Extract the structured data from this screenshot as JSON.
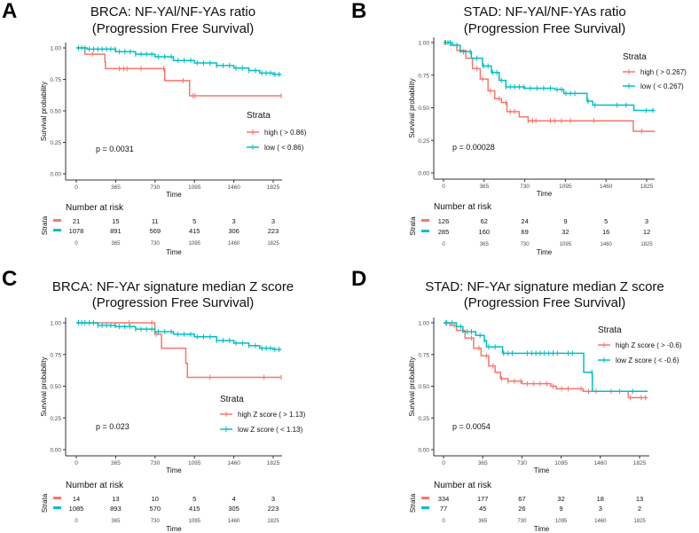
{
  "colors": {
    "high": "#F8766D",
    "low": "#00BFC4",
    "axis": "#333333",
    "tick": "#4D4D4D"
  },
  "chart_data": [
    {
      "type": "line",
      "subtype": "kaplan-meier",
      "panel_letter": "A",
      "title": [
        "BRCA: NF-YAl/NF-YAs ratio",
        "(Progression Free Survival)"
      ],
      "xlabel": "Time",
      "ylabel": "Survival probability",
      "xticks": [
        0,
        365,
        730,
        1095,
        1460,
        1825
      ],
      "xlim": [
        -100,
        1910
      ],
      "yticks": [
        "0.00",
        "0.25",
        "0.50",
        "0.75",
        "1.00"
      ],
      "ylim": [
        -0.05,
        1.04
      ],
      "pvalue": "p = 0.0031",
      "legend": {
        "title": "Strata",
        "placement": "right-middle"
      },
      "series": [
        {
          "name": "high ( > 0.86)",
          "key": "high",
          "points": [
            [
              0,
              1
            ],
            [
              80,
              0.95
            ],
            [
              265,
              0.89
            ],
            [
              270,
              0.835
            ],
            [
              820,
              0.74
            ],
            [
              1050,
              0.62
            ],
            [
              1900,
              0.62
            ]
          ],
          "censor": [
            150,
            400,
            440,
            470,
            600,
            810,
            990,
            1080,
            1100,
            1900
          ]
        },
        {
          "name": "low ( < 0.86)",
          "key": "low",
          "points": [
            [
              0,
              1
            ],
            [
              100,
              0.99
            ],
            [
              365,
              0.97
            ],
            [
              550,
              0.95
            ],
            [
              730,
              0.93
            ],
            [
              900,
              0.9
            ],
            [
              1095,
              0.88
            ],
            [
              1300,
              0.86
            ],
            [
              1460,
              0.84
            ],
            [
              1600,
              0.82
            ],
            [
              1700,
              0.8
            ],
            [
              1825,
              0.79
            ],
            [
              1900,
              0.79
            ]
          ],
          "censor": [
            20,
            50,
            80,
            120,
            160,
            200,
            240,
            280,
            320,
            360,
            400,
            450,
            500,
            550,
            600,
            650,
            700,
            760,
            820,
            880,
            940,
            1000,
            1060,
            1120,
            1180,
            1240,
            1300,
            1360,
            1420,
            1480,
            1540,
            1600,
            1660,
            1720,
            1760,
            1800,
            1840,
            1880
          ]
        }
      ],
      "risk_table": {
        "title": "Number at risk",
        "strata_label": "Strata",
        "time_label": "Time",
        "rows": [
          [
            "21",
            "15",
            "11",
            "5",
            "3",
            "3"
          ],
          [
            "1078",
            "891",
            "569",
            "415",
            "306",
            "223"
          ]
        ]
      }
    },
    {
      "type": "line",
      "subtype": "kaplan-meier",
      "panel_letter": "B",
      "title": [
        "STAD: NF-YAl/NF-YAs ratio",
        "(Progression Free Survival)"
      ],
      "xlabel": "Time",
      "ylabel": "Survival probability",
      "xticks": [
        0,
        365,
        730,
        1095,
        1460,
        1825
      ],
      "xlim": [
        -100,
        1910
      ],
      "yticks": [
        "0.00",
        "0.25",
        "0.50",
        "0.75",
        "1.00"
      ],
      "ylim": [
        -0.05,
        1.04
      ],
      "pvalue": "p = 0.00028",
      "legend": {
        "title": "Strata",
        "placement": "top-right"
      },
      "series": [
        {
          "name": "high ( > 0.267)",
          "key": "high",
          "points": [
            [
              0,
              1
            ],
            [
              60,
              0.98
            ],
            [
              120,
              0.94
            ],
            [
              200,
              0.88
            ],
            [
              260,
              0.8
            ],
            [
              330,
              0.72
            ],
            [
              400,
              0.63
            ],
            [
              460,
              0.57
            ],
            [
              520,
              0.54
            ],
            [
              570,
              0.47
            ],
            [
              680,
              0.43
            ],
            [
              760,
              0.4
            ],
            [
              1700,
              0.4
            ],
            [
              1705,
              0.32
            ],
            [
              1900,
              0.32
            ]
          ],
          "censor": [
            10,
            150,
            300,
            350,
            420,
            500,
            560,
            600,
            640,
            760,
            800,
            830,
            960,
            1000,
            1060,
            1140,
            1350,
            1780
          ]
        },
        {
          "name": "low ( < 0.267)",
          "key": "low",
          "points": [
            [
              0,
              1
            ],
            [
              80,
              0.98
            ],
            [
              150,
              0.93
            ],
            [
              250,
              0.88
            ],
            [
              350,
              0.82
            ],
            [
              430,
              0.77
            ],
            [
              500,
              0.71
            ],
            [
              560,
              0.66
            ],
            [
              730,
              0.65
            ],
            [
              1000,
              0.64
            ],
            [
              1080,
              0.61
            ],
            [
              1250,
              0.61
            ],
            [
              1290,
              0.55
            ],
            [
              1340,
              0.52
            ],
            [
              1700,
              0.52
            ],
            [
              1710,
              0.48
            ],
            [
              1900,
              0.48
            ]
          ],
          "censor": [
            20,
            40,
            60,
            120,
            180,
            240,
            300,
            360,
            400,
            440,
            480,
            520,
            560,
            600,
            640,
            680,
            720,
            780,
            840,
            900,
            960,
            1020,
            1060,
            1100,
            1140,
            1180,
            1300,
            1360,
            1560,
            1640,
            1820,
            1880
          ]
        }
      ],
      "risk_table": {
        "title": "Number at risk",
        "strata_label": "Strata",
        "time_label": "Time",
        "rows": [
          [
            "126",
            "62",
            "24",
            "9",
            "5",
            "3"
          ],
          [
            "285",
            "160",
            "69",
            "32",
            "16",
            "12"
          ]
        ]
      }
    },
    {
      "type": "line",
      "subtype": "kaplan-meier",
      "panel_letter": "C",
      "title": [
        "BRCA: NF-YAr signature median Z score",
        "(Progression Free Survival)"
      ],
      "xlabel": "Time",
      "ylabel": "Survival probability",
      "xticks": [
        0,
        365,
        730,
        1095,
        1460,
        1825
      ],
      "xlim": [
        -100,
        1910
      ],
      "yticks": [
        "0.00",
        "0.25",
        "0.50",
        "0.75",
        "1.00"
      ],
      "ylim": [
        -0.05,
        1.04
      ],
      "pvalue": "p = 0.023",
      "legend": {
        "title": "Strata",
        "placement": "right-middle"
      },
      "series": [
        {
          "name": "high Z score ( > 1.13)",
          "key": "high",
          "points": [
            [
              0,
              1
            ],
            [
              725,
              1
            ],
            [
              728,
              0.91
            ],
            [
              790,
              0.8
            ],
            [
              1010,
              0.8
            ],
            [
              1015,
              0.68
            ],
            [
              1030,
              0.57
            ],
            [
              1900,
              0.57
            ]
          ],
          "censor": [
            490,
            700,
            740,
            1240,
            1740,
            1900
          ]
        },
        {
          "name": "low Z score ( < 1.13)",
          "key": "low",
          "points": [
            [
              0,
              1
            ],
            [
              200,
              0.98
            ],
            [
              365,
              0.97
            ],
            [
              550,
              0.95
            ],
            [
              730,
              0.93
            ],
            [
              900,
              0.91
            ],
            [
              1095,
              0.89
            ],
            [
              1300,
              0.86
            ],
            [
              1460,
              0.84
            ],
            [
              1600,
              0.82
            ],
            [
              1700,
              0.8
            ],
            [
              1825,
              0.79
            ],
            [
              1900,
              0.79
            ]
          ],
          "censor": [
            20,
            50,
            80,
            120,
            160,
            200,
            240,
            280,
            320,
            360,
            400,
            450,
            500,
            550,
            600,
            650,
            700,
            760,
            820,
            880,
            940,
            1000,
            1060,
            1120,
            1180,
            1240,
            1300,
            1360,
            1420,
            1480,
            1540,
            1600,
            1660,
            1720,
            1760,
            1800,
            1840,
            1880
          ]
        }
      ],
      "risk_table": {
        "title": "Number at risk",
        "strata_label": "Strata",
        "time_label": "Time",
        "rows": [
          [
            "14",
            "13",
            "10",
            "5",
            "4",
            "3"
          ],
          [
            "1085",
            "893",
            "570",
            "415",
            "305",
            "223"
          ]
        ]
      }
    },
    {
      "type": "line",
      "subtype": "kaplan-meier",
      "panel_letter": "D",
      "title": [
        "STAD: NF-YAr signature median Z score",
        "(Progression Free Survival)"
      ],
      "xlabel": "Time",
      "ylabel": "Survival probability",
      "xticks": [
        0,
        365,
        730,
        1095,
        1460,
        1825
      ],
      "xlim": [
        -100,
        1910
      ],
      "yticks": [
        "0.00",
        "0.25",
        "0.50",
        "0.75",
        "1.00"
      ],
      "ylim": [
        -0.05,
        1.04
      ],
      "pvalue": "p = 0.0054",
      "legend": {
        "title": "Strata",
        "placement": "top-right"
      },
      "series": [
        {
          "name": "high Z score ( > -0.6)",
          "key": "high",
          "points": [
            [
              0,
              1
            ],
            [
              60,
              0.98
            ],
            [
              120,
              0.94
            ],
            [
              200,
              0.88
            ],
            [
              280,
              0.8
            ],
            [
              350,
              0.74
            ],
            [
              420,
              0.66
            ],
            [
              480,
              0.61
            ],
            [
              530,
              0.56
            ],
            [
              600,
              0.54
            ],
            [
              730,
              0.52
            ],
            [
              1000,
              0.5
            ],
            [
              1050,
              0.48
            ],
            [
              1300,
              0.46
            ],
            [
              1700,
              0.46
            ],
            [
              1720,
              0.41
            ],
            [
              1900,
              0.41
            ]
          ],
          "censor": [
            20,
            100,
            180,
            260,
            330,
            400,
            460,
            540,
            600,
            660,
            720,
            780,
            840,
            900,
            960,
            1020,
            1100,
            1160,
            1280,
            1350,
            1420,
            1560,
            1640,
            1740,
            1840,
            1880
          ]
        },
        {
          "name": "low Z score ( < -0.6)",
          "key": "low",
          "points": [
            [
              0,
              1
            ],
            [
              120,
              0.97
            ],
            [
              180,
              0.93
            ],
            [
              300,
              0.9
            ],
            [
              380,
              0.86
            ],
            [
              400,
              0.81
            ],
            [
              550,
              0.76
            ],
            [
              1300,
              0.76
            ],
            [
              1305,
              0.61
            ],
            [
              1380,
              0.61
            ],
            [
              1385,
              0.46
            ],
            [
              1900,
              0.46
            ]
          ],
          "censor": [
            30,
            80,
            160,
            220,
            260,
            340,
            380,
            420,
            480,
            560,
            600,
            640,
            780,
            820,
            860,
            900,
            940,
            980,
            1020,
            1060,
            1160,
            1200,
            1380,
            1760
          ]
        }
      ],
      "risk_table": {
        "title": "Number at risk",
        "strata_label": "Strata",
        "time_label": "Time",
        "rows": [
          [
            "334",
            "177",
            "67",
            "32",
            "18",
            "13"
          ],
          [
            "77",
            "45",
            "26",
            "9",
            "3",
            "2"
          ]
        ]
      }
    }
  ]
}
